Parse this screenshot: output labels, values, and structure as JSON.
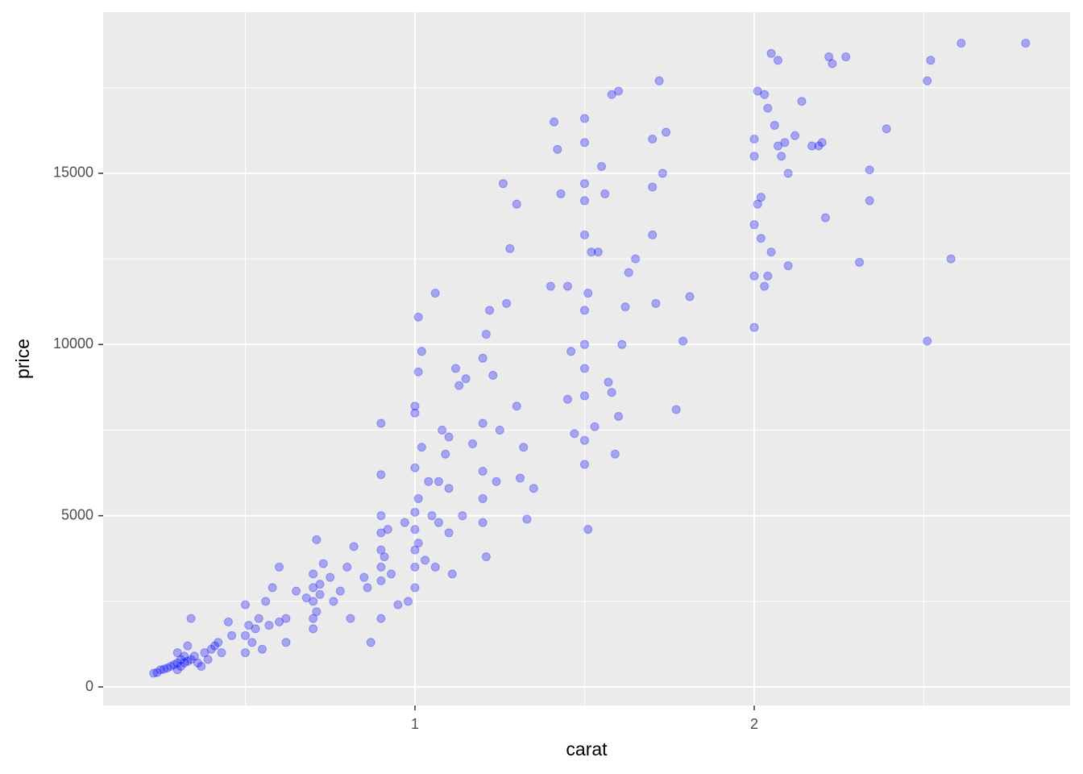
{
  "chart_data": {
    "type": "scatter",
    "x_label": "carat",
    "y_label": "price",
    "xlim": [
      0.081,
      2.931
    ],
    "ylim": [
      -541,
      19708
    ],
    "xticks": [
      1,
      2
    ],
    "yticks": [
      0,
      5000,
      10000,
      15000
    ],
    "xminor": [
      0.5,
      1.5,
      2.5
    ],
    "yminor": [
      2500,
      7500,
      12500,
      17500
    ],
    "grid": true,
    "color": "#0000ff",
    "opacity": 0.3,
    "x": [
      0.23,
      0.24,
      0.25,
      0.26,
      0.27,
      0.28,
      0.29,
      0.3,
      0.3,
      0.31,
      0.31,
      0.32,
      0.32,
      0.33,
      0.34,
      0.35,
      0.36,
      0.38,
      0.4,
      0.41,
      0.42,
      0.43,
      0.3,
      0.33,
      0.34,
      0.37,
      0.39,
      0.45,
      0.46,
      0.5,
      0.5,
      0.5,
      0.51,
      0.52,
      0.53,
      0.54,
      0.55,
      0.56,
      0.57,
      0.58,
      0.6,
      0.6,
      0.62,
      0.62,
      0.65,
      0.68,
      0.7,
      0.7,
      0.7,
      0.7,
      0.7,
      0.71,
      0.71,
      0.72,
      0.72,
      0.73,
      0.75,
      0.76,
      0.78,
      0.8,
      0.81,
      0.82,
      0.85,
      0.86,
      0.87,
      0.9,
      0.9,
      0.9,
      0.9,
      0.9,
      0.9,
      0.9,
      0.9,
      0.91,
      0.92,
      0.93,
      0.95,
      0.97,
      0.98,
      1.0,
      1.0,
      1.0,
      1.0,
      1.0,
      1.0,
      1.0,
      1.0,
      1.01,
      1.01,
      1.01,
      1.01,
      1.02,
      1.02,
      1.03,
      1.04,
      1.05,
      1.06,
      1.07,
      1.08,
      1.1,
      1.1,
      1.1,
      1.12,
      1.15,
      1.13,
      1.06,
      1.07,
      1.09,
      1.11,
      1.14,
      1.17,
      1.2,
      1.2,
      1.2,
      1.2,
      1.2,
      1.21,
      1.21,
      1.22,
      1.23,
      1.24,
      1.25,
      1.26,
      1.27,
      1.28,
      1.3,
      1.3,
      1.31,
      1.32,
      1.33,
      1.35,
      1.4,
      1.41,
      1.42,
      1.43,
      1.45,
      1.45,
      1.46,
      1.47,
      1.5,
      1.5,
      1.5,
      1.5,
      1.5,
      1.5,
      1.5,
      1.5,
      1.5,
      1.5,
      1.5,
      1.51,
      1.51,
      1.52,
      1.53,
      1.54,
      1.55,
      1.56,
      1.57,
      1.58,
      1.59,
      1.6,
      1.61,
      1.58,
      1.6,
      1.62,
      1.63,
      1.65,
      1.7,
      1.7,
      1.7,
      1.71,
      1.72,
      1.73,
      1.74,
      1.77,
      1.79,
      1.81,
      2.0,
      2.0,
      2.0,
      2.0,
      2.0,
      2.01,
      2.01,
      2.02,
      2.02,
      2.03,
      2.03,
      2.04,
      2.04,
      2.05,
      2.05,
      2.06,
      2.07,
      2.07,
      2.08,
      2.09,
      2.1,
      2.1,
      2.12,
      2.14,
      2.17,
      2.19,
      2.2,
      2.21,
      2.22,
      2.23,
      2.27,
      2.31,
      2.34,
      2.34,
      2.39,
      2.51,
      2.51,
      2.52,
      2.58,
      2.61,
      2.8
    ],
    "values": [
      400,
      420,
      500,
      520,
      550,
      600,
      650,
      700,
      500,
      600,
      800,
      700,
      900,
      750,
      800,
      900,
      700,
      1000,
      1100,
      1200,
      1300,
      1000,
      1000,
      1200,
      2000,
      600,
      800,
      1900,
      1500,
      1500,
      2400,
      1000,
      1800,
      1300,
      1700,
      2000,
      1100,
      2500,
      1800,
      2900,
      1900,
      3500,
      1300,
      2000,
      2800,
      2600,
      2000,
      2500,
      2900,
      3300,
      1700,
      2200,
      4300,
      2700,
      3000,
      3600,
      3200,
      2500,
      2800,
      3500,
      2000,
      4100,
      3200,
      2900,
      1300,
      3500,
      4000,
      4500,
      3100,
      5000,
      6200,
      7700,
      2000,
      3800,
      4600,
      3300,
      2400,
      4800,
      2500,
      4000,
      4600,
      5100,
      3500,
      6400,
      8000,
      8200,
      2900,
      5500,
      4200,
      10800,
      9200,
      9800,
      7000,
      3700,
      6000,
      5000,
      3500,
      4800,
      7500,
      4500,
      5800,
      7300,
      9300,
      9000,
      8800,
      11500,
      6000,
      6800,
      3300,
      5000,
      7100,
      4800,
      5500,
      6300,
      7700,
      9600,
      10300,
      3800,
      11000,
      9100,
      6000,
      7500,
      14700,
      11200,
      12800,
      14100,
      8200,
      6100,
      7000,
      4900,
      5800,
      11700,
      16500,
      15700,
      14400,
      11700,
      8400,
      9800,
      7400,
      6500,
      7200,
      8500,
      9300,
      10000,
      11000,
      13200,
      14200,
      14700,
      15900,
      16600,
      4600,
      11500,
      12700,
      7600,
      12700,
      15200,
      14400,
      8900,
      8600,
      6800,
      7900,
      10000,
      17300,
      17400,
      11100,
      12100,
      12500,
      13200,
      14600,
      16000,
      11200,
      17700,
      15000,
      16200,
      8100,
      10100,
      11400,
      10500,
      12000,
      13500,
      15500,
      16000,
      17400,
      14100,
      14300,
      13100,
      11700,
      17300,
      12000,
      16900,
      18500,
      12700,
      16400,
      18300,
      15800,
      15500,
      15900,
      15000,
      12300,
      16100,
      17100,
      15800,
      15800,
      15900,
      13700,
      18400,
      18200,
      18400,
      12400,
      14200,
      15100,
      16300,
      17700,
      10100,
      18300,
      12500,
      18800,
      18800
    ]
  }
}
